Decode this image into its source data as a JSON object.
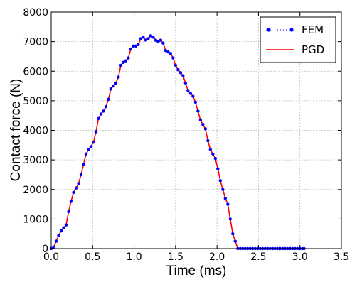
{
  "chart_data": {
    "type": "line",
    "xlabel": "Time (ms)",
    "ylabel": "Contact force (N)",
    "xlim": [
      0.0,
      3.5
    ],
    "ylim": [
      0,
      8000
    ],
    "x_ticks": [
      "0.0",
      "0.5",
      "1.0",
      "1.5",
      "2.0",
      "2.5",
      "3.0",
      "3.5"
    ],
    "y_ticks": [
      "0",
      "1000",
      "2000",
      "3000",
      "4000",
      "5000",
      "6000",
      "7000",
      "8000"
    ],
    "grid": true,
    "legend_position": "top-right",
    "x": [
      0.0,
      0.03,
      0.06,
      0.09,
      0.12,
      0.15,
      0.18,
      0.21,
      0.24,
      0.27,
      0.3,
      0.33,
      0.36,
      0.39,
      0.42,
      0.45,
      0.48,
      0.51,
      0.54,
      0.57,
      0.6,
      0.63,
      0.66,
      0.69,
      0.72,
      0.75,
      0.78,
      0.81,
      0.84,
      0.87,
      0.9,
      0.93,
      0.96,
      0.99,
      1.02,
      1.05,
      1.08,
      1.11,
      1.14,
      1.17,
      1.2,
      1.23,
      1.26,
      1.29,
      1.32,
      1.35,
      1.38,
      1.41,
      1.44,
      1.47,
      1.5,
      1.53,
      1.56,
      1.59,
      1.62,
      1.65,
      1.68,
      1.71,
      1.74,
      1.77,
      1.8,
      1.83,
      1.86,
      1.89,
      1.92,
      1.95,
      1.98,
      2.01,
      2.04,
      2.07,
      2.1,
      2.13,
      2.16,
      2.19,
      2.22,
      2.25,
      2.28,
      2.31,
      2.34,
      2.37,
      2.4,
      2.43,
      2.46,
      2.49,
      2.52,
      2.55,
      2.58,
      2.61,
      2.64,
      2.67,
      2.7,
      2.73,
      2.76,
      2.79,
      2.82,
      2.85,
      2.88,
      2.91,
      2.94,
      2.97,
      3.0,
      3.03,
      3.05
    ],
    "series": [
      {
        "name": "FEM",
        "color": "#0000ff",
        "style": "dotted-markers",
        "values": [
          0,
          50,
          250,
          450,
          600,
          700,
          800,
          1250,
          1600,
          1900,
          2050,
          2200,
          2500,
          2850,
          3200,
          3350,
          3450,
          3600,
          3950,
          4400,
          4550,
          4650,
          4800,
          5050,
          5400,
          5500,
          5600,
          5800,
          6200,
          6300,
          6350,
          6450,
          6750,
          6850,
          6850,
          6900,
          7100,
          7150,
          7050,
          7100,
          7200,
          7150,
          7050,
          7000,
          7050,
          6950,
          6700,
          6650,
          6600,
          6450,
          6200,
          6050,
          5950,
          5850,
          5600,
          5350,
          5250,
          5150,
          4950,
          4650,
          4350,
          4200,
          4050,
          3650,
          3350,
          3200,
          3050,
          2700,
          2300,
          2000,
          1700,
          1500,
          1000,
          500,
          250,
          0,
          0,
          0,
          0,
          0,
          0,
          0,
          0,
          0,
          0,
          0,
          0,
          0,
          0,
          0,
          0,
          0,
          0,
          0,
          0,
          0,
          0,
          0,
          0,
          0,
          0,
          0,
          0
        ]
      },
      {
        "name": "PGD",
        "color": "#ff0000",
        "style": "solid",
        "values": [
          0,
          50,
          250,
          450,
          600,
          700,
          800,
          1250,
          1600,
          1900,
          2050,
          2200,
          2500,
          2850,
          3200,
          3350,
          3450,
          3600,
          3950,
          4400,
          4550,
          4650,
          4800,
          5050,
          5400,
          5500,
          5600,
          5800,
          6200,
          6300,
          6350,
          6450,
          6750,
          6850,
          6850,
          6900,
          7100,
          7150,
          7050,
          7100,
          7200,
          7150,
          7050,
          7000,
          7050,
          6950,
          6700,
          6650,
          6600,
          6450,
          6200,
          6050,
          5950,
          5850,
          5600,
          5350,
          5250,
          5150,
          4950,
          4650,
          4350,
          4200,
          4050,
          3650,
          3350,
          3200,
          3050,
          2700,
          2300,
          2000,
          1700,
          1500,
          1000,
          500,
          250,
          0,
          0,
          0,
          0,
          0,
          0,
          0,
          0,
          0,
          0,
          0,
          0,
          0,
          0,
          0,
          0,
          0,
          0,
          0,
          0,
          0,
          0,
          0,
          0,
          0,
          0,
          0,
          0
        ]
      }
    ]
  }
}
